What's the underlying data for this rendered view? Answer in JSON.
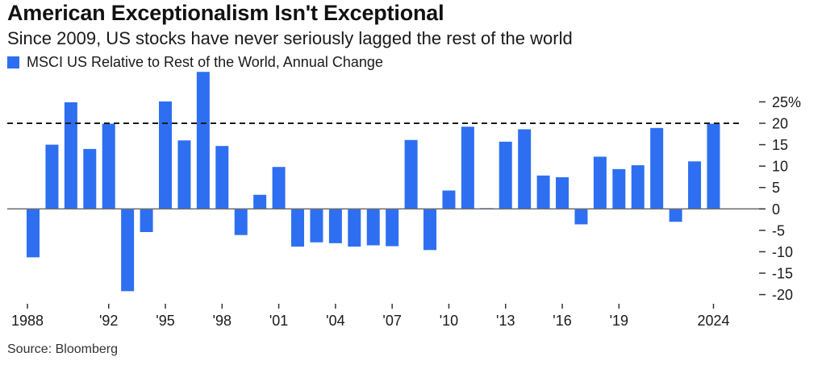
{
  "title": "American Exceptionalism Isn't Exceptional",
  "subtitle": "Since 2009, US stocks have never seriously lagged the rest of the world",
  "source": "Source: Bloomberg",
  "colors": {
    "bar": "#2d6ff0",
    "zero_line": "#6e6e6e",
    "reference_line": "#1a1a1a",
    "text": "#1a1a1a"
  },
  "chart_data": {
    "type": "bar",
    "title": "American Exceptionalism Isn't Exceptional",
    "subtitle": "Since 2009, US stocks have never seriously lagged the rest of the world",
    "xlabel": "",
    "ylabel": "",
    "legend": {
      "position": "top-left",
      "entries": [
        "MSCI US Relative to Rest of the World, Annual Change"
      ]
    },
    "grid": false,
    "ylim": [
      -20,
      32
    ],
    "y_ticks": [
      25,
      20,
      15,
      10,
      5,
      0,
      -5,
      -10,
      -15,
      -20
    ],
    "y_tick_labels": [
      "25%",
      "20",
      "15",
      "10",
      "5",
      "0",
      "-5",
      "-10",
      "-15",
      "-20"
    ],
    "y_axis_side": "right",
    "x_ticks": [
      1988,
      1992,
      1995,
      1998,
      2001,
      2004,
      2007,
      2010,
      2013,
      2016,
      2019,
      2024
    ],
    "x_tick_labels": [
      "1988",
      "'92",
      "'95",
      "'98",
      "'01",
      "'04",
      "'07",
      "'10",
      "'13",
      "'16",
      "'19",
      "2024"
    ],
    "reference_line": {
      "value": 20,
      "style": "dashed"
    },
    "categories": [
      1988,
      1989,
      1990,
      1991,
      1992,
      1993,
      1994,
      1995,
      1996,
      1997,
      1998,
      1999,
      2000,
      2001,
      2002,
      2003,
      2004,
      2005,
      2006,
      2007,
      2008,
      2009,
      2010,
      2011,
      2012,
      2013,
      2014,
      2015,
      2016,
      2017,
      2018,
      2019,
      2020,
      2021,
      2022,
      2023,
      2024
    ],
    "series": [
      {
        "name": "MSCI US Relative to Rest of the World, Annual Change",
        "values": [
          -11.3,
          15.0,
          24.9,
          14.0,
          19.9,
          -19.2,
          -5.4,
          25.1,
          16.0,
          32.0,
          14.7,
          -6.1,
          3.3,
          9.8,
          -8.8,
          -7.8,
          -8.0,
          -8.8,
          -8.5,
          -8.7,
          16.1,
          -9.6,
          4.3,
          19.2,
          0.2,
          15.7,
          18.6,
          7.8,
          7.4,
          -3.6,
          12.2,
          9.3,
          10.2,
          18.9,
          -3.0,
          11.1,
          19.9
        ]
      }
    ]
  }
}
